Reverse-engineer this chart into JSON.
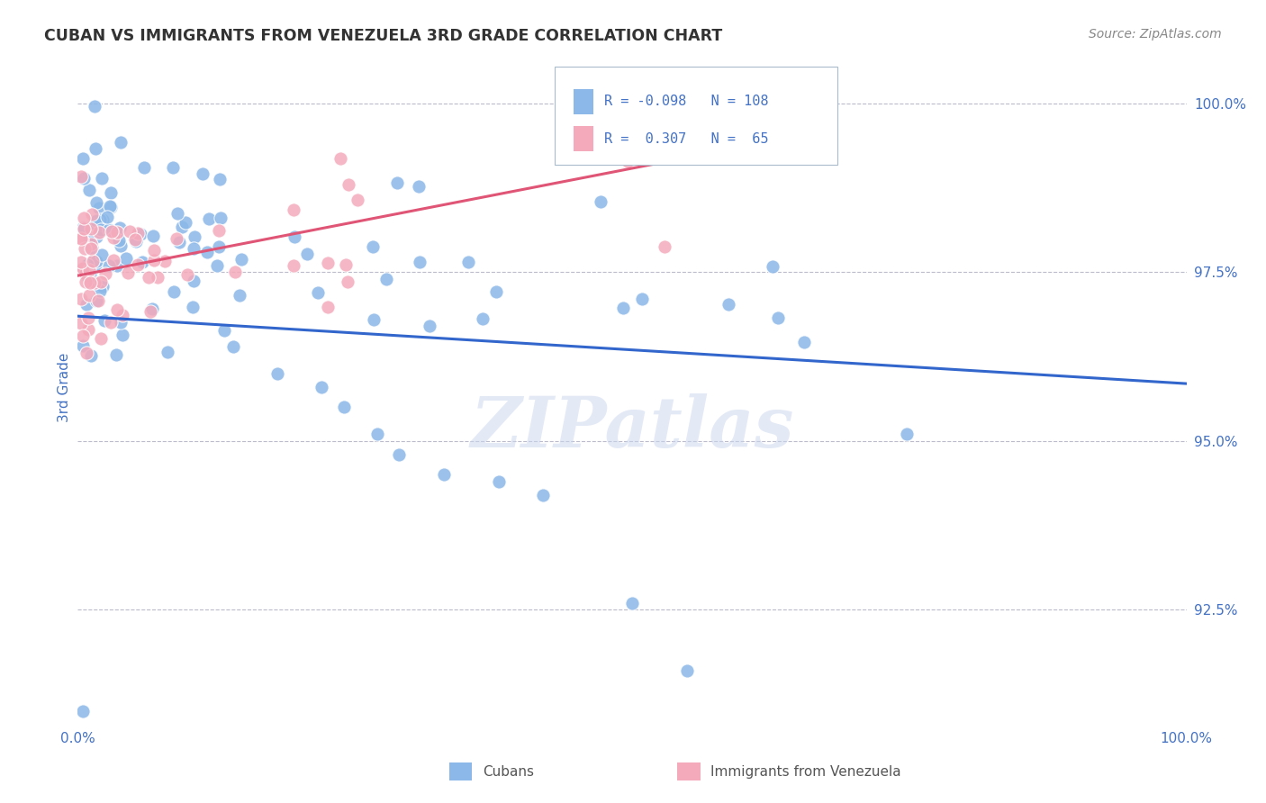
{
  "title": "CUBAN VS IMMIGRANTS FROM VENEZUELA 3RD GRADE CORRELATION CHART",
  "source": "Source: ZipAtlas.com",
  "ylabel": "3rd Grade",
  "ytick_values": [
    0.925,
    0.95,
    0.975,
    1.0
  ],
  "xlim": [
    0.0,
    1.0
  ],
  "ylim": [
    0.908,
    1.008
  ],
  "blue_color": "#8BB8E8",
  "pink_color": "#F4AABB",
  "line_blue": "#3366CC",
  "line_pink": "#E05575",
  "watermark": "ZIPatlas",
  "legend_text_color": "#4472C4",
  "tick_color": "#4472C4",
  "grid_color": "#BBBBCC",
  "title_color": "#333333",
  "source_color": "#888888",
  "blue_line_start_y": 0.9785,
  "blue_line_end_y": 0.9685,
  "pink_line_start_y": 0.9745,
  "pink_line_end_y": 0.992,
  "pink_line_end_x": 0.55
}
